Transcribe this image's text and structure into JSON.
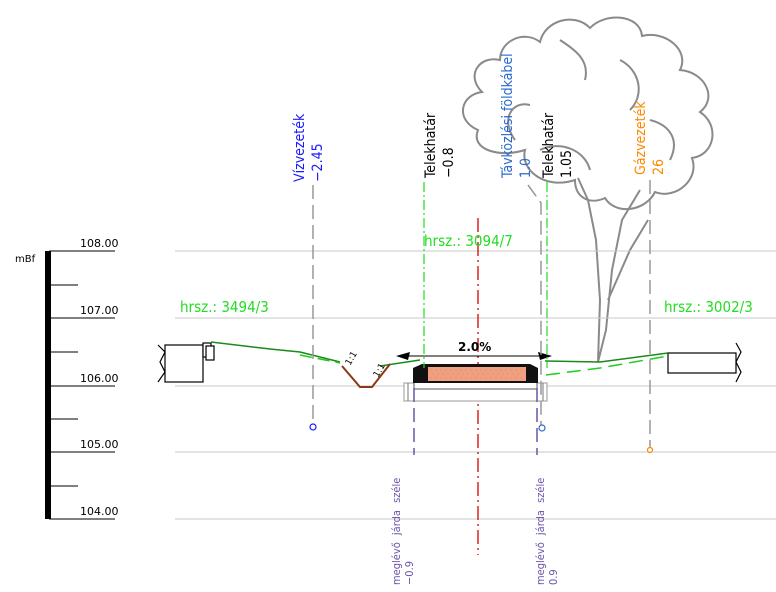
{
  "scale": {
    "unit": "mBf",
    "ticks": [
      "108.00",
      "107.00",
      "106.00",
      "105.00",
      "104.00"
    ]
  },
  "parcels": {
    "left": "hrsz.: 3494/3",
    "center": "hrsz.: 3094/7",
    "right": "hrsz.: 3002/3"
  },
  "utilities": {
    "water": {
      "name": "Vízvezeték",
      "depth": "−2.45"
    },
    "boundary_left": {
      "name": "Telekhatár",
      "depth": "−0.8"
    },
    "telecom": {
      "name": "Távközlési földkábel",
      "depth": "1.0"
    },
    "boundary_right": {
      "name": "Telekhatár",
      "depth": "1.05"
    },
    "gas": {
      "name": "Gázvezeték",
      "depth": "26"
    }
  },
  "sidewalk": {
    "left": {
      "line1": "meglévő járda széle",
      "value": "−0.9"
    },
    "right": {
      "line1": "meglévő járda széle",
      "value": "0.9"
    }
  },
  "road": {
    "slope": "2.0%"
  },
  "ditch": {
    "slope_left": "1:1",
    "slope_right": "1:1"
  },
  "colors": {
    "water": "#1a1aff",
    "telecom": "#2a6ad0",
    "gas": "#ff8800",
    "parcel": "#22dd22",
    "sidewalk": "#6a55aa",
    "axis": "#dd2222",
    "ground": "#1a8a1a",
    "asphalt": "#f0a080"
  }
}
